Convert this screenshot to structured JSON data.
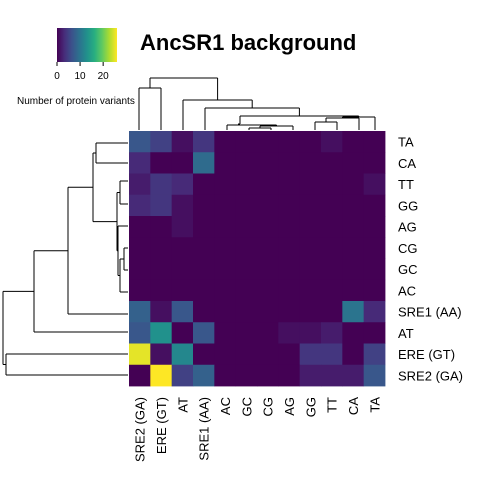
{
  "chart_data": {
    "type": "heatmap",
    "title": "AncSR1 background",
    "colorbar": {
      "title": "Number of protein variants",
      "ticks": [
        0,
        10,
        20
      ],
      "range": [
        0,
        26
      ],
      "colors": [
        "#440154",
        "#472d7b",
        "#3b528b",
        "#2c728e",
        "#21918c",
        "#28ae80",
        "#5ec962",
        "#addc30",
        "#fde725"
      ]
    },
    "rows": [
      "TA",
      "CA",
      "TT",
      "GG",
      "AG",
      "CG",
      "GC",
      "AC",
      "SRE1 (AA)",
      "AT",
      "ERE (GT)",
      "SRE2 (GA)"
    ],
    "columns": [
      "SRE2 (GA)",
      "ERE (GT)",
      "AT",
      "SRE1 (AA)",
      "AC",
      "GC",
      "CG",
      "AG",
      "GG",
      "TT",
      "CA",
      "TA"
    ],
    "values": [
      [
        7,
        5,
        1,
        4,
        0,
        0,
        0,
        0,
        0,
        1,
        0,
        0
      ],
      [
        3,
        0,
        0,
        9,
        0,
        0,
        0,
        0,
        0,
        0,
        0,
        0
      ],
      [
        2,
        4,
        3,
        0,
        0,
        0,
        0,
        0,
        0,
        0,
        0,
        1
      ],
      [
        3,
        4,
        1,
        0,
        0,
        0,
        0,
        0,
        0,
        0,
        0,
        0
      ],
      [
        0,
        0,
        1,
        0,
        0,
        0,
        0,
        0,
        0,
        0,
        0,
        0
      ],
      [
        0,
        0,
        0,
        0,
        0,
        0,
        0,
        0,
        0,
        0,
        0,
        0
      ],
      [
        0,
        0,
        0,
        0,
        0,
        0,
        0,
        0,
        0,
        0,
        0,
        0
      ],
      [
        0,
        0,
        0,
        0,
        0,
        0,
        0,
        0,
        0,
        0,
        0,
        0
      ],
      [
        8,
        1,
        7,
        0,
        0,
        0,
        0,
        0,
        0,
        0,
        10,
        3
      ],
      [
        7,
        13,
        0,
        7,
        0,
        0,
        0,
        1,
        1,
        2,
        0,
        0
      ],
      [
        25,
        1,
        12,
        0,
        0,
        0,
        0,
        0,
        4,
        4,
        0,
        5
      ],
      [
        0,
        26,
        5,
        8,
        0,
        0,
        0,
        0,
        2,
        2,
        2,
        7
      ]
    ]
  }
}
